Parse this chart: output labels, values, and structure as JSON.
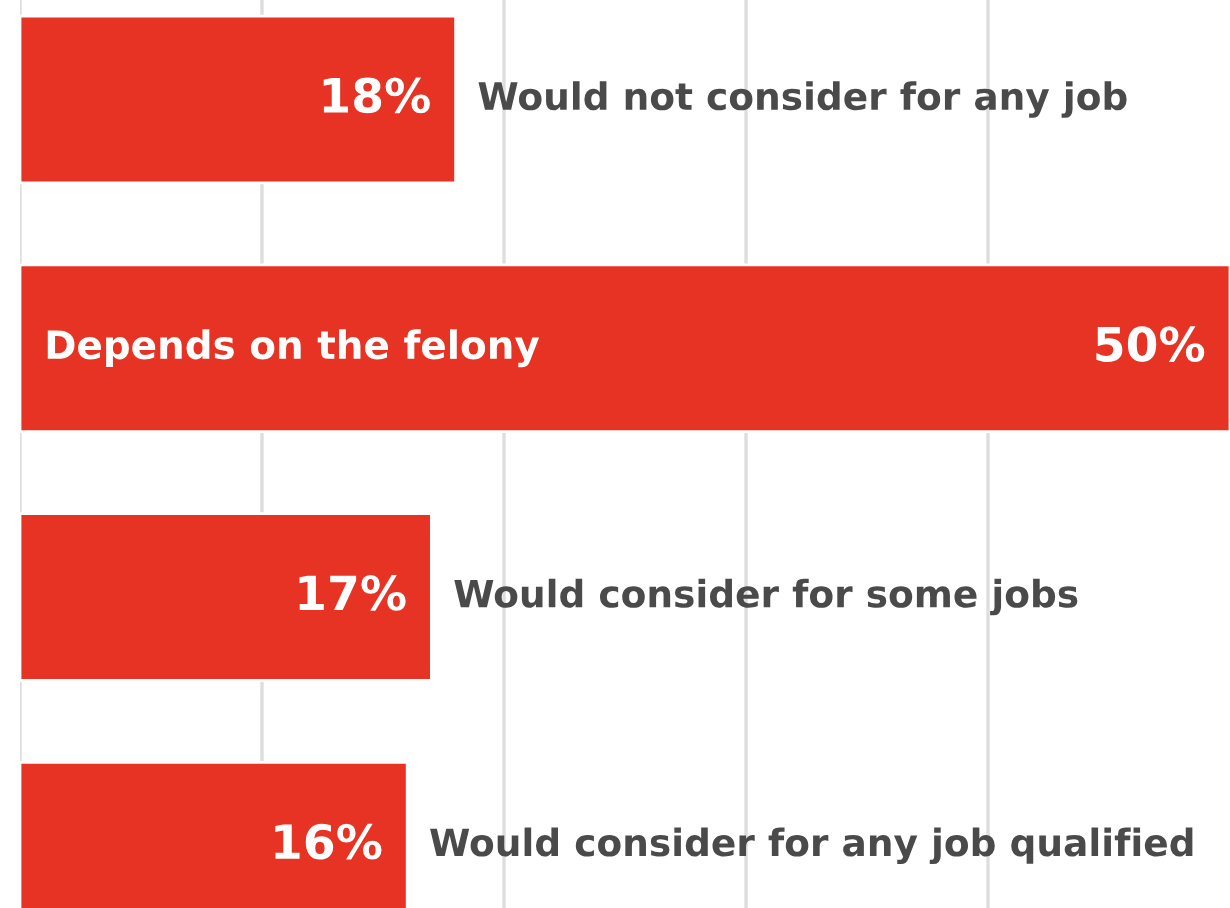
{
  "chart_data": {
    "type": "bar",
    "orientation": "horizontal",
    "categories": [
      "Would not consider for any job",
      "Depends on the felony",
      "Would consider for some jobs",
      "Would consider for any job qualified"
    ],
    "values": [
      18,
      50,
      17,
      16
    ],
    "color": "#e63323",
    "xlim": [
      0,
      50
    ],
    "xticks": [
      {
        "value": 0,
        "label": null
      },
      {
        "value": 10,
        "label": null
      },
      {
        "value": 20,
        "label": null
      },
      {
        "value": 30,
        "label": null
      },
      {
        "value": 40,
        "label": null
      }
    ],
    "grid": "x",
    "value_labels": [
      "18%",
      "50%",
      "17%",
      "16%"
    ]
  }
}
